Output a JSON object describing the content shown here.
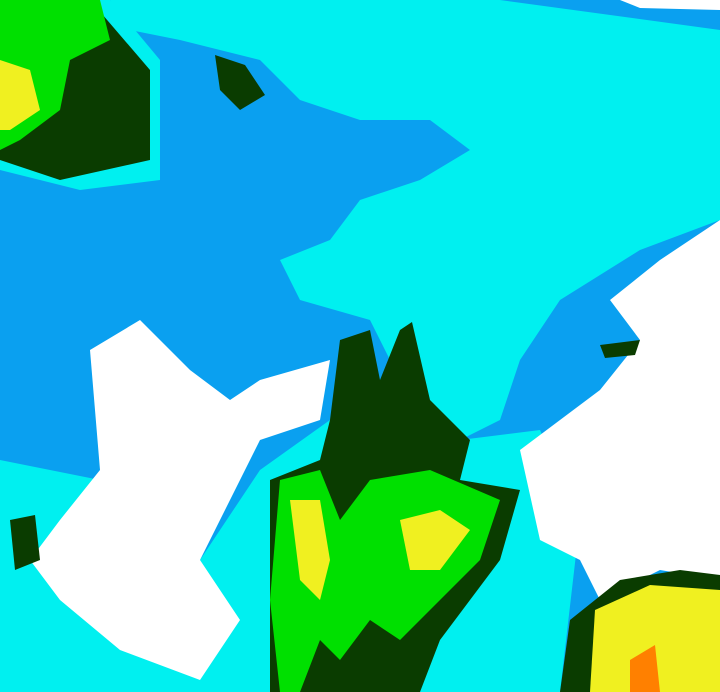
{
  "image": {
    "palette": {
      "background": "#0aa0f0",
      "cyan": "#00f0f0",
      "white": "#ffffff",
      "dark_green": "#0a3c00",
      "green": "#00e000",
      "yellow": "#f0f020",
      "orange": "#ff8000"
    }
  }
}
